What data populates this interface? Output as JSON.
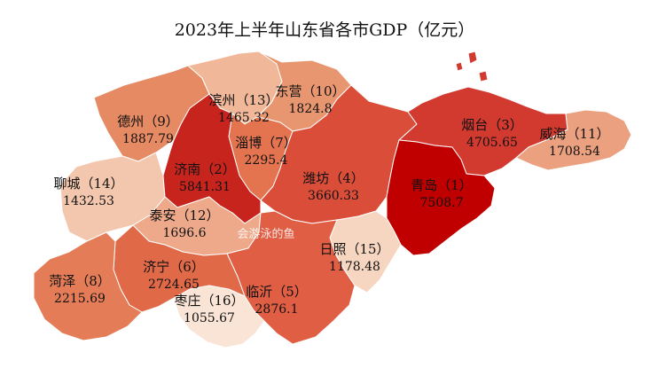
{
  "title": "2023年上半年山东省各市GDP（亿元）",
  "watermark": "会游泳的鱼",
  "chart_data": {
    "type": "choropleth",
    "region": "Shandong",
    "unit": "亿元",
    "cities": [
      {
        "rank": 1,
        "name": "青岛",
        "gdp": 7508.7,
        "label": "青岛（1）",
        "value_label": "7508.7",
        "color": "#c00000"
      },
      {
        "rank": 2,
        "name": "济南",
        "gdp": 5841.31,
        "label": "济南（2）",
        "value_label": "5841.31",
        "color": "#c8241e"
      },
      {
        "rank": 3,
        "name": "烟台",
        "gdp": 4705.65,
        "label": "烟台（3）",
        "value_label": "4705.65",
        "color": "#d23a30"
      },
      {
        "rank": 4,
        "name": "潍坊",
        "gdp": 3660.33,
        "label": "潍坊（4）",
        "value_label": "3660.33",
        "color": "#d94d39"
      },
      {
        "rank": 5,
        "name": "临沂",
        "gdp": 2876.1,
        "label": "临沂（5）",
        "value_label": "2876.1",
        "color": "#df5e44"
      },
      {
        "rank": 6,
        "name": "济宁",
        "gdp": 2724.65,
        "label": "济宁（6）",
        "value_label": "2724.65",
        "color": "#e06948"
      },
      {
        "rank": 7,
        "name": "淄博",
        "gdp": 2295.4,
        "label": "淄博（7）",
        "value_label": "2295.4",
        "color": "#e3744f"
      },
      {
        "rank": 8,
        "name": "菏泽",
        "gdp": 2215.69,
        "label": "菏泽（8）",
        "value_label": "2215.69",
        "color": "#e47d57"
      },
      {
        "rank": 9,
        "name": "德州",
        "gdp": 1887.79,
        "label": "德州（9）",
        "value_label": "1887.79",
        "color": "#e58a63"
      },
      {
        "rank": 10,
        "name": "东营",
        "gdp": 1824.8,
        "label": "东营（10）",
        "value_label": "1824.8",
        "color": "#e79670"
      },
      {
        "rank": 11,
        "name": "威海",
        "gdp": 1708.54,
        "label": "威海（11）",
        "value_label": "1708.54",
        "color": "#eba07f"
      },
      {
        "rank": 12,
        "name": "泰安",
        "gdp": 1696.6,
        "label": "泰安（12）",
        "value_label": "1696.6",
        "color": "#eda98a"
      },
      {
        "rank": 13,
        "name": "滨州",
        "gdp": 1465.32,
        "label": "滨州（13）",
        "value_label": "1465.32",
        "color": "#f0b899"
      },
      {
        "rank": 14,
        "name": "聊城",
        "gdp": 1432.53,
        "label": "聊城（14）",
        "value_label": "1432.53",
        "color": "#f3c7ad"
      },
      {
        "rank": 15,
        "name": "日照",
        "gdp": 1178.48,
        "label": "日照（15）",
        "value_label": "1178.48",
        "color": "#f6d6c1"
      },
      {
        "rank": 16,
        "name": "枣庄",
        "gdp": 1055.67,
        "label": "枣庄（16）",
        "value_label": "1055.67",
        "color": "#f9e4d6"
      }
    ]
  }
}
